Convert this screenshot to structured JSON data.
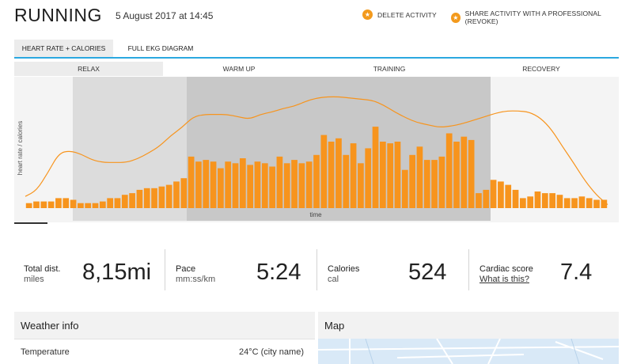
{
  "header": {
    "title": "RUNNING",
    "date": "5 August 2017 at 14:45",
    "actions": [
      {
        "label": "DELETE ACTIVITY",
        "icon": "star-icon"
      },
      {
        "label": "SHARE ACTIVITY WITH A PROFESSIONAL (REVOKE)",
        "icon": "star-icon"
      }
    ]
  },
  "tabs": [
    {
      "label": "HEART RATE + CALORIES",
      "active": true
    },
    {
      "label": "FULL EKG DIAGRAM",
      "active": false
    }
  ],
  "phases": [
    "RELAX",
    "WARM UP",
    "TRAINING",
    "RECOVERY"
  ],
  "chart_data": {
    "type": "bar",
    "ylabel": "heart rate / calories",
    "xlabel": "time",
    "colors": {
      "bars": "#f7941d",
      "line": "#f7941d",
      "warmup_band": "#dcdcdc",
      "training_band": "#c8c8c8"
    },
    "values": [
      3,
      4,
      4,
      4,
      6,
      6,
      5,
      3,
      3,
      3,
      4,
      6,
      6,
      8,
      9,
      11,
      12,
      12,
      13,
      14,
      16,
      18,
      31,
      28,
      29,
      28,
      24,
      28,
      27,
      30,
      26,
      28,
      27,
      25,
      31,
      27,
      29,
      27,
      28,
      32,
      44,
      40,
      42,
      32,
      39,
      27,
      36,
      49,
      40,
      39,
      40,
      23,
      32,
      37,
      29,
      29,
      31,
      45,
      40,
      43,
      41,
      9,
      11,
      17,
      16,
      14,
      11,
      6,
      7,
      10,
      9,
      9,
      8,
      6,
      6,
      7,
      6,
      5,
      5
    ],
    "line": [
      10,
      15,
      30,
      47,
      49,
      46,
      41,
      39,
      39,
      39,
      42,
      47,
      53,
      62,
      69,
      78,
      80,
      80,
      80,
      78,
      76,
      80,
      82,
      85,
      87,
      91,
      94,
      95,
      95,
      94,
      93,
      92,
      88,
      82,
      77,
      73,
      71,
      69,
      70,
      72,
      75,
      78,
      81,
      83,
      83,
      82,
      77,
      67,
      52,
      38,
      23,
      11,
      3
    ],
    "series": [
      {
        "name": "heart rate",
        "type": "line"
      },
      {
        "name": "calories",
        "type": "bar"
      }
    ]
  },
  "stats": [
    {
      "label": "Total dist.",
      "unit": "miles",
      "value": "8,15mi"
    },
    {
      "label": "Pace",
      "unit": "mm:ss/km",
      "value": "5:24"
    },
    {
      "label": "Calories",
      "unit": "cal",
      "value": "524"
    },
    {
      "label": "Cardiac score",
      "unit": "What is this?",
      "value": "7.4"
    }
  ],
  "weather": {
    "title": "Weather info",
    "rows": [
      {
        "key": "Temperature",
        "value": "24°C (city name)"
      }
    ]
  },
  "map": {
    "title": "Map"
  }
}
